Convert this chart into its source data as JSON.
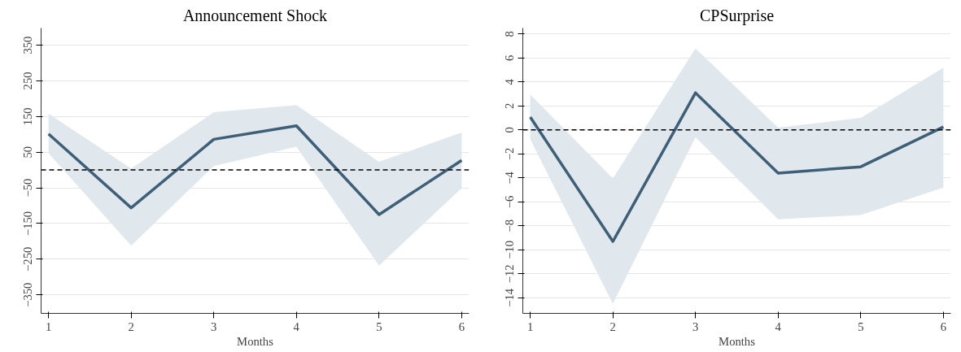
{
  "chart_data": [
    {
      "type": "line",
      "title": "Announcement Shock",
      "xlabel": "Months",
      "x": [
        1,
        2,
        3,
        4,
        5,
        6
      ],
      "series": [
        {
          "color": "#3e5f78",
          "values": [
            101,
            -106,
            86,
            124,
            -125,
            27
          ],
          "lower": [
            47,
            -212,
            11,
            65,
            -268,
            -51
          ],
          "upper": [
            158,
            4,
            162,
            182,
            23,
            105
          ]
        }
      ],
      "xlim": [
        0.91,
        6.09
      ],
      "ylim": [
        -402,
        398
      ],
      "xticks": [
        1,
        2,
        3,
        4,
        5,
        6
      ],
      "yticks": [
        -350,
        -250,
        -150,
        -50,
        50,
        150,
        250,
        350
      ],
      "ref_lines": [
        {
          "axis": "y",
          "value": 0,
          "color": "#000000",
          "line_style": "dashed"
        }
      ],
      "grid": "y",
      "line_style": "solid"
    },
    {
      "type": "line",
      "title": "CPSurprise",
      "xlabel": "Months",
      "x": [
        1,
        2,
        3,
        4,
        5,
        6
      ],
      "series": [
        {
          "color": "#3e5f78",
          "values": [
            1.07,
            -9.3,
            3.1,
            -3.6,
            -3.07,
            0.25
          ],
          "lower": [
            -0.77,
            -14.5,
            -0.6,
            -7.45,
            -7.1,
            -4.8
          ],
          "upper": [
            2.96,
            -4.05,
            6.8,
            0.2,
            1.0,
            5.2
          ]
        }
      ],
      "xlim": [
        0.91,
        6.09
      ],
      "ylim": [
        -15.3,
        8.5
      ],
      "xticks": [
        1,
        2,
        3,
        4,
        5,
        6
      ],
      "yticks": [
        -14,
        -12,
        -10,
        -8,
        -6,
        -4,
        -2,
        0,
        2,
        4,
        6,
        8
      ],
      "ref_lines": [
        {
          "axis": "y",
          "value": 0,
          "color": "#000000",
          "line_style": "dashed"
        }
      ],
      "grid": "y",
      "line_style": "solid"
    }
  ]
}
